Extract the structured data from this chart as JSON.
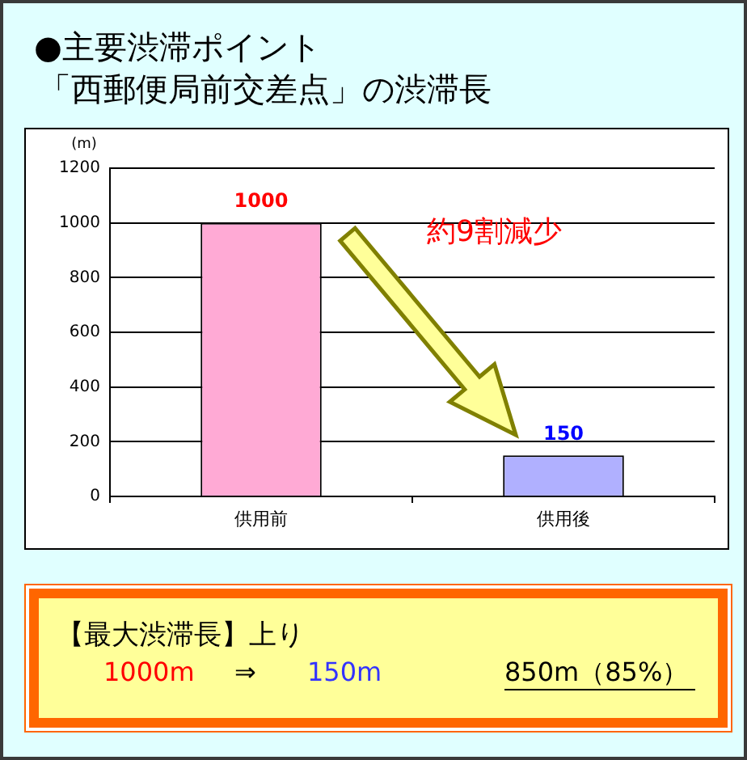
{
  "chart_data": {
    "type": "bar",
    "title": "●主要渋滞ポイント",
    "subtitle": "「西郵便局前交差点」の渋滞長",
    "ylabel": "(m)",
    "categories": [
      "供用前",
      "供用後"
    ],
    "values": [
      1000,
      150
    ],
    "colors": [
      "#ffaad5",
      "#b0b0ff"
    ],
    "ylim": [
      0,
      1200
    ],
    "yticks": [
      0,
      200,
      400,
      600,
      800,
      1000,
      1200
    ],
    "grid": "y",
    "data_labels": true,
    "annotations": [
      "約9割減少",
      "【最大渋滞長】上り",
      "1000m",
      "⇒",
      "150m",
      "850m（85%）"
    ]
  }
}
